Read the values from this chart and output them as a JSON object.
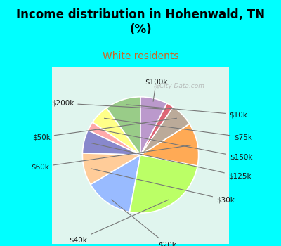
{
  "title": "Income distribution in Hohenwald, TN\n(%)",
  "subtitle": "White residents",
  "background_color": "#00FFFF",
  "chart_bg_gradient_top": "#f0faf8",
  "chart_bg_gradient_bottom": "#d4f0e8",
  "labels": [
    "$10k",
    "$75k",
    "$150k",
    "$125k",
    "$30k",
    "$20k",
    "$40k",
    "$60k",
    "$50k",
    "$200k",
    "$100k"
  ],
  "values": [
    10.0,
    5.5,
    2.5,
    6.5,
    9.0,
    13.5,
    25.0,
    12.0,
    6.5,
    2.0,
    7.5
  ],
  "colors": [
    "#99cc88",
    "#ffff88",
    "#ffaaaa",
    "#8888cc",
    "#ffcc99",
    "#99bbff",
    "#bbff66",
    "#ffaa55",
    "#bbaa99",
    "#dd6677",
    "#bb99cc"
  ],
  "startangle": 90,
  "watermark": "@City-Data.com",
  "title_fontsize": 12,
  "subtitle_fontsize": 10,
  "subtitle_color": "#cc6622",
  "label_fontsize": 7.5
}
